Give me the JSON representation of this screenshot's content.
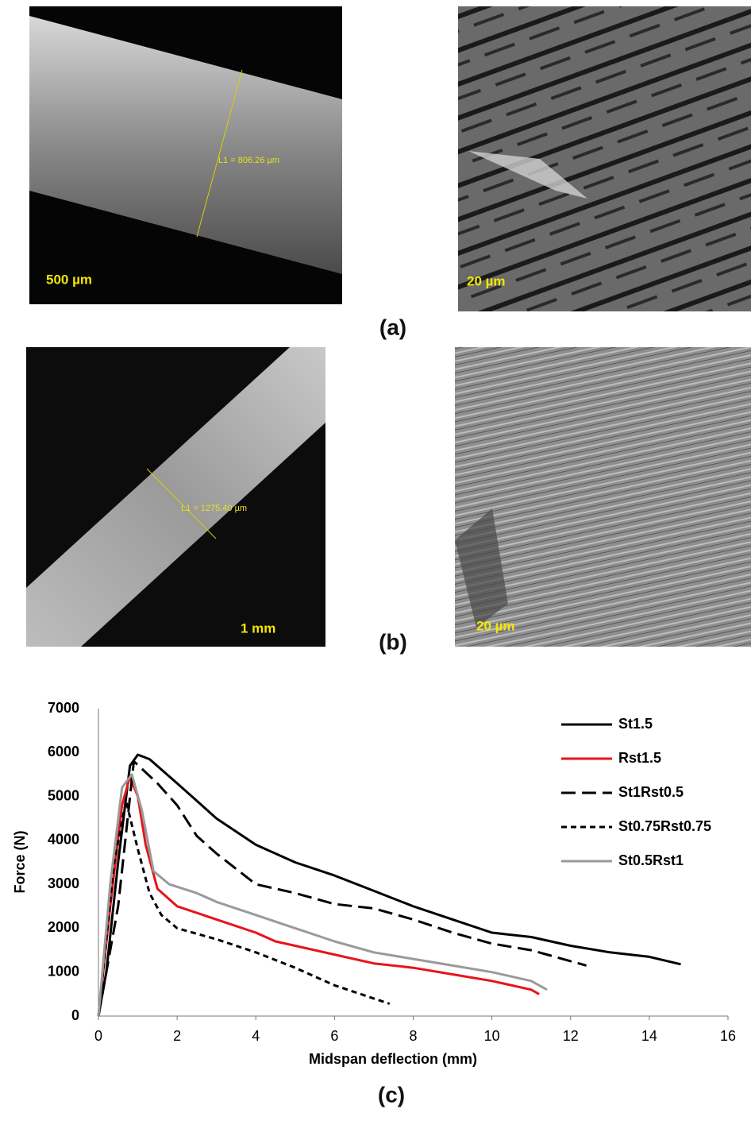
{
  "panel_a": {
    "left_scale": "500 µm",
    "left_measure": "L1 = 806.26 µm",
    "right_scale": "20 µm",
    "label": "(a)"
  },
  "panel_b": {
    "left_scale": "1 mm",
    "left_measure": "L1 = 1275.40 µm",
    "right_scale": "20 µm",
    "label": "(b)"
  },
  "panel_c": {
    "label": "(c)"
  },
  "chart_data": {
    "type": "line",
    "xlabel": "Midspan deflection (mm)",
    "ylabel": "Force (N)",
    "xlim": [
      0,
      16
    ],
    "xticks": [
      0,
      2,
      4,
      6,
      8,
      10,
      12,
      14,
      16
    ],
    "ylim": [
      0,
      7000
    ],
    "yticks": [
      0,
      1000,
      2000,
      3000,
      4000,
      5000,
      6000,
      7000
    ],
    "grid": false,
    "legend": "upper right",
    "series": [
      {
        "name": "St1.5",
        "color": "#000000",
        "dash": "solid",
        "x": [
          0,
          0.2,
          0.5,
          0.8,
          1.0,
          1.3,
          2,
          3,
          4,
          5,
          6,
          7,
          8,
          9,
          10,
          11,
          12,
          13,
          14,
          14.8
        ],
        "values": [
          0,
          1000,
          3500,
          5700,
          5950,
          5850,
          5300,
          4500,
          3900,
          3500,
          3200,
          2850,
          2500,
          2200,
          1900,
          1800,
          1600,
          1450,
          1350,
          1180
        ]
      },
      {
        "name": "Rst1.5",
        "color": "#e8141a",
        "dash": "solid",
        "x": [
          0,
          0.3,
          0.6,
          0.8,
          1.0,
          1.2,
          1.5,
          2,
          3,
          4,
          4.5,
          5,
          6,
          7,
          8,
          9,
          10,
          11,
          11.2
        ],
        "values": [
          0,
          2500,
          4800,
          5450,
          5000,
          3900,
          2900,
          2500,
          2200,
          1900,
          1700,
          1600,
          1400,
          1200,
          1100,
          950,
          800,
          600,
          500
        ]
      },
      {
        "name": "St1Rst0.5",
        "color": "#000000",
        "dash": "long",
        "x": [
          0,
          0.5,
          0.9,
          1.5,
          2,
          2.5,
          3,
          4,
          5,
          6,
          7,
          8,
          9,
          10,
          11,
          12,
          12.4
        ],
        "values": [
          0,
          2500,
          5800,
          5300,
          4800,
          4100,
          3700,
          3000,
          2800,
          2550,
          2450,
          2200,
          1900,
          1650,
          1500,
          1250,
          1150
        ]
      },
      {
        "name": "St0.75Rst0.75",
        "color": "#000000",
        "dash": "short",
        "x": [
          0,
          0.4,
          0.7,
          1.0,
          1.3,
          1.6,
          2,
          3,
          4,
          5,
          6,
          7,
          7.4
        ],
        "values": [
          0,
          3500,
          4900,
          3800,
          2800,
          2300,
          2000,
          1750,
          1450,
          1100,
          700,
          400,
          280
        ]
      },
      {
        "name": "St0.5Rst1",
        "color": "#9a9a9a",
        "dash": "solid",
        "x": [
          0,
          0.3,
          0.6,
          0.85,
          1.1,
          1.4,
          1.8,
          2.5,
          3,
          4,
          5,
          6,
          7,
          8,
          9,
          10,
          11,
          11.4
        ],
        "values": [
          0,
          3000,
          5200,
          5500,
          4700,
          3300,
          3000,
          2800,
          2600,
          2300,
          2000,
          1700,
          1450,
          1300,
          1150,
          1000,
          800,
          600
        ]
      }
    ]
  }
}
